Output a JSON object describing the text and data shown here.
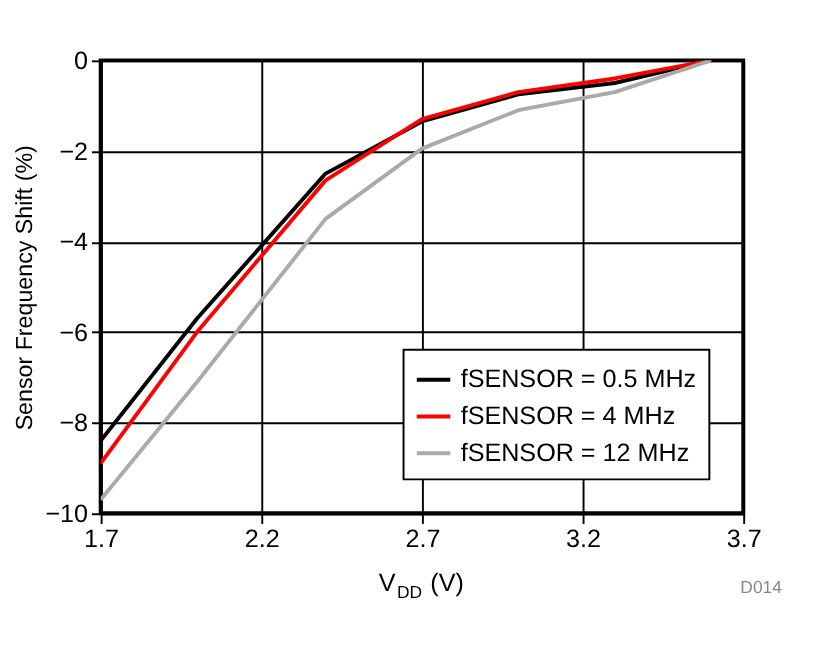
{
  "chart_data": {
    "type": "line",
    "xlabel": "V$_{DD}$ (V)",
    "ylabel": "Sensor Frequency Shift (%)",
    "x": [
      1.7,
      2.0,
      2.4,
      2.7,
      3.0,
      3.3,
      3.6
    ],
    "series": [
      {
        "name": "fSENSOR = 0.5 MHz",
        "color": "#000000",
        "values": [
          -8.4,
          -5.7,
          -2.5,
          -1.35,
          -0.75,
          -0.5,
          0
        ]
      },
      {
        "name": "fSENSOR = 4 MHz",
        "color": "#ff0000",
        "values": [
          -8.9,
          -6.0,
          -2.65,
          -1.3,
          -0.7,
          -0.4,
          0
        ]
      },
      {
        "name": "fSENSOR = 12 MHz",
        "color": "#aaaaaa",
        "values": [
          -9.7,
          -7.1,
          -3.5,
          -1.95,
          -1.1,
          -0.7,
          0
        ]
      }
    ],
    "xlim": [
      1.7,
      3.7
    ],
    "xticks": [
      1.7,
      2.2,
      2.7,
      3.2,
      3.7
    ],
    "ylim": [
      -10,
      0
    ],
    "yticks": [
      -10,
      -8,
      -6,
      -4,
      -2,
      0
    ],
    "grid": true,
    "legend": "bottom right",
    "marker": "none",
    "line_style": "solid",
    "annotations": [
      "D014"
    ]
  }
}
